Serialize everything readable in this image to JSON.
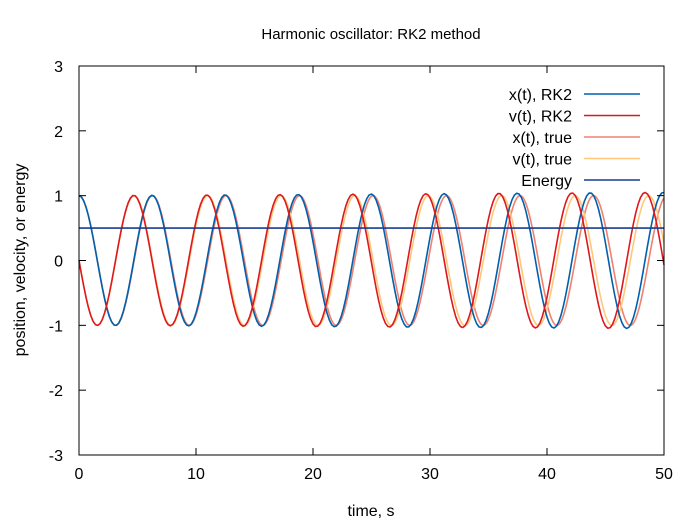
{
  "chart_data": {
    "type": "line",
    "title": "Harmonic oscillator: RK2 method",
    "xlabel": "time, s",
    "ylabel": "position, velocity, or energy",
    "xlim": [
      0,
      50
    ],
    "ylim": [
      -3,
      3
    ],
    "xticks": [
      0,
      10,
      20,
      30,
      40,
      50
    ],
    "yticks": [
      -3,
      -2,
      -1,
      0,
      1,
      2,
      3
    ],
    "grid": false,
    "legend_position": "top-right",
    "dt": 0.2,
    "series": [
      {
        "name": "x(t), RK2",
        "color": "#0060ad",
        "kind": "rk2_x"
      },
      {
        "name": "v(t), RK2",
        "color": "#dd181f",
        "kind": "rk2_v"
      },
      {
        "name": "x(t), true",
        "color": "#f08070",
        "kind": "true_x"
      },
      {
        "name": "v(t), true",
        "color": "#ffc87a",
        "kind": "true_v"
      },
      {
        "name": "Energy",
        "color": "#1a3d8f",
        "kind": "energy",
        "value": 0.5
      }
    ]
  }
}
